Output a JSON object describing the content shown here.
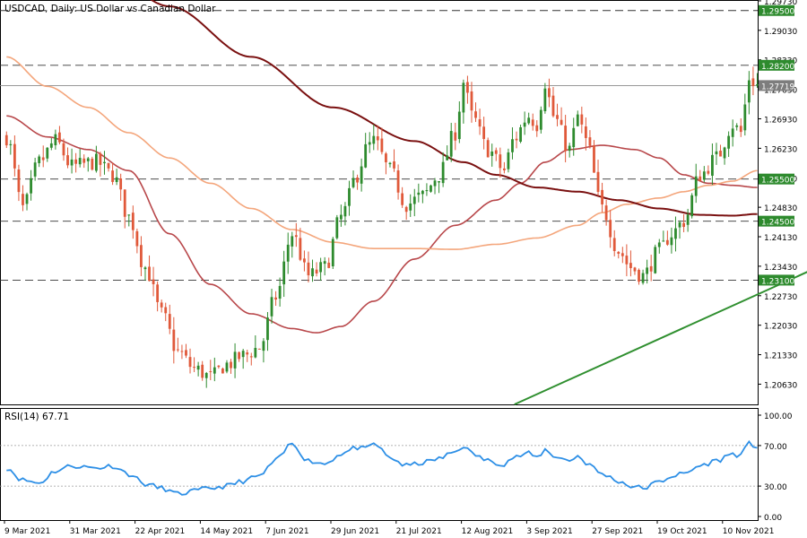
{
  "title": "USDCAD, Daily:  US Dollar vs Canadian Dollar",
  "rsi_label": "RSI(14) 67.71",
  "colors": {
    "bull": "#2e8b2e",
    "bear": "#e0593a",
    "ma_short": "#b8474a",
    "ma_mid": "#f4a67c",
    "ma_long": "#7a1010",
    "trendline": "#2f8f2f",
    "rsi": "#2d8fe6",
    "grid_dash": "#333333",
    "axis": "#000000",
    "label_bg": "#2e8b2e"
  },
  "chart_data": [
    {
      "type": "candlestick",
      "title": "USDCAD, Daily:  US Dollar vs Canadian Dollar",
      "ylim": [
        1.2015,
        1.2975
      ],
      "y_ticks": [
        "1.29730",
        "1.29030",
        "1.28330",
        "1.27630",
        "1.26930",
        "1.26230",
        "1.25530",
        "1.24830",
        "1.24130",
        "1.23430",
        "1.22730",
        "1.22030",
        "1.21330",
        "1.20630"
      ],
      "x_ticks": [
        "9 Mar 2021",
        "31 Mar 2021",
        "22 Apr 2021",
        "14 May 2021",
        "7 Jun 2021",
        "29 Jun 2021",
        "21 Jul 2021",
        "12 Aug 2021",
        "3 Sep 2021",
        "27 Sep 2021",
        "19 Oct 2021",
        "10 Nov 2021"
      ],
      "x_tick_index": [
        0,
        16,
        32,
        48,
        64,
        80,
        96,
        112,
        128,
        144,
        160,
        176
      ],
      "price_levels": [
        {
          "label": "1.29500",
          "value": 1.295
        },
        {
          "label": "1.28200",
          "value": 1.282
        },
        {
          "label": "1.25500",
          "value": 1.255
        },
        {
          "label": "1.24500",
          "value": 1.245
        },
        {
          "label": "1.23100",
          "value": 1.231
        }
      ],
      "current_price": {
        "label": "1.27719",
        "value": 1.27719
      },
      "anchors": [
        [
          0,
          1.265
        ],
        [
          4,
          1.248
        ],
        [
          8,
          1.259
        ],
        [
          12,
          1.264
        ],
        [
          16,
          1.258
        ],
        [
          22,
          1.259
        ],
        [
          26,
          1.256
        ],
        [
          30,
          1.246
        ],
        [
          34,
          1.234
        ],
        [
          38,
          1.223
        ],
        [
          42,
          1.214
        ],
        [
          46,
          1.21
        ],
        [
          50,
          1.208
        ],
        [
          54,
          1.211
        ],
        [
          58,
          1.213
        ],
        [
          62,
          1.215
        ],
        [
          66,
          1.227
        ],
        [
          70,
          1.242
        ],
        [
          74,
          1.232
        ],
        [
          78,
          1.234
        ],
        [
          82,
          1.246
        ],
        [
          86,
          1.256
        ],
        [
          88,
          1.262
        ],
        [
          90,
          1.264
        ],
        [
          94,
          1.257
        ],
        [
          98,
          1.249
        ],
        [
          102,
          1.251
        ],
        [
          106,
          1.256
        ],
        [
          110,
          1.266
        ],
        [
          112,
          1.278
        ],
        [
          114,
          1.27
        ],
        [
          118,
          1.262
        ],
        [
          122,
          1.257
        ],
        [
          124,
          1.264
        ],
        [
          128,
          1.27
        ],
        [
          130,
          1.268
        ],
        [
          132,
          1.278
        ],
        [
          134,
          1.27
        ],
        [
          138,
          1.262
        ],
        [
          140,
          1.27
        ],
        [
          142,
          1.264
        ],
        [
          146,
          1.248
        ],
        [
          150,
          1.238
        ],
        [
          153,
          1.234
        ],
        [
          156,
          1.232
        ],
        [
          160,
          1.238
        ],
        [
          163,
          1.242
        ],
        [
          166,
          1.245
        ],
        [
          170,
          1.256
        ],
        [
          174,
          1.26
        ],
        [
          178,
          1.268
        ],
        [
          180,
          1.266
        ],
        [
          182,
          1.279
        ],
        [
          184,
          1.2772
        ]
      ],
      "candle_count": 185,
      "series": [
        {
          "name": "MA short",
          "anchors": [
            [
              0,
              1.27
            ],
            [
              10,
              1.265
            ],
            [
              20,
              1.262
            ],
            [
              30,
              1.257
            ],
            [
              40,
              1.242
            ],
            [
              50,
              1.23
            ],
            [
              60,
              1.223
            ],
            [
              70,
              1.2195
            ],
            [
              76,
              1.2185
            ],
            [
              82,
              1.22
            ],
            [
              90,
              1.226
            ],
            [
              100,
              1.236
            ],
            [
              110,
              1.244
            ],
            [
              120,
              1.25
            ],
            [
              126,
              1.254
            ],
            [
              132,
              1.259
            ],
            [
              138,
              1.262
            ],
            [
              146,
              1.263
            ],
            [
              154,
              1.262
            ],
            [
              160,
              1.26
            ],
            [
              166,
              1.256
            ],
            [
              172,
              1.254
            ],
            [
              178,
              1.2535
            ],
            [
              184,
              1.253
            ]
          ]
        },
        {
          "name": "MA mid",
          "anchors": [
            [
              0,
              1.284
            ],
            [
              10,
              1.277
            ],
            [
              20,
              1.272
            ],
            [
              30,
              1.266
            ],
            [
              40,
              1.26
            ],
            [
              50,
              1.254
            ],
            [
              60,
              1.248
            ],
            [
              70,
              1.243
            ],
            [
              80,
              1.24
            ],
            [
              90,
              1.2385
            ],
            [
              100,
              1.2385
            ],
            [
              110,
              1.2383
            ],
            [
              120,
              1.2395
            ],
            [
              130,
              1.241
            ],
            [
              140,
              1.244
            ],
            [
              146,
              1.247
            ],
            [
              152,
              1.249
            ],
            [
              160,
              1.2505
            ],
            [
              166,
              1.252
            ],
            [
              172,
              1.2535
            ],
            [
              178,
              1.2545
            ],
            [
              184,
              1.257
            ]
          ]
        },
        {
          "name": "MA long",
          "anchors": [
            [
              0,
              1.32
            ],
            [
              20,
              1.308
            ],
            [
              40,
              1.296
            ],
            [
              60,
              1.284
            ],
            [
              80,
              1.272
            ],
            [
              100,
              1.264
            ],
            [
              112,
              1.259
            ],
            [
              120,
              1.256
            ],
            [
              130,
              1.253
            ],
            [
              140,
              1.252
            ],
            [
              150,
              1.25
            ],
            [
              160,
              1.248
            ],
            [
              170,
              1.2465
            ],
            [
              178,
              1.2463
            ],
            [
              184,
              1.2467
            ]
          ]
        }
      ],
      "trendline": {
        "start": [
          125,
          1.2015
        ],
        "end": [
          222,
          1.244
        ]
      }
    },
    {
      "type": "line",
      "title": "RSI(14) 67.71",
      "ylim": [
        0,
        100
      ],
      "y_ticks": [
        "100.00",
        "70.00",
        "30.00",
        "0.00"
      ],
      "levels": [
        70,
        30
      ],
      "series": [
        {
          "name": "RSI(14)",
          "anchors": [
            [
              0,
              48
            ],
            [
              4,
              36
            ],
            [
              8,
              33
            ],
            [
              12,
              45
            ],
            [
              16,
              50
            ],
            [
              22,
              48
            ],
            [
              26,
              50
            ],
            [
              30,
              42
            ],
            [
              34,
              32
            ],
            [
              38,
              28
            ],
            [
              42,
              22
            ],
            [
              46,
              25
            ],
            [
              50,
              28
            ],
            [
              54,
              30
            ],
            [
              58,
              35
            ],
            [
              62,
              40
            ],
            [
              66,
              55
            ],
            [
              70,
              72
            ],
            [
              74,
              55
            ],
            [
              78,
              52
            ],
            [
              82,
              62
            ],
            [
              86,
              68
            ],
            [
              88,
              66
            ],
            [
              90,
              72
            ],
            [
              94,
              58
            ],
            [
              98,
              50
            ],
            [
              102,
              53
            ],
            [
              106,
              57
            ],
            [
              110,
              64
            ],
            [
              112,
              70
            ],
            [
              114,
              62
            ],
            [
              118,
              55
            ],
            [
              122,
              52
            ],
            [
              124,
              58
            ],
            [
              128,
              62
            ],
            [
              130,
              58
            ],
            [
              132,
              66
            ],
            [
              134,
              60
            ],
            [
              138,
              55
            ],
            [
              140,
              60
            ],
            [
              142,
              53
            ],
            [
              146,
              42
            ],
            [
              150,
              35
            ],
            [
              153,
              30
            ],
            [
              156,
              28
            ],
            [
              160,
              34
            ],
            [
              163,
              40
            ],
            [
              166,
              42
            ],
            [
              170,
              50
            ],
            [
              174,
              55
            ],
            [
              178,
              62
            ],
            [
              180,
              60
            ],
            [
              182,
              72
            ],
            [
              184,
              67.71
            ]
          ]
        }
      ]
    }
  ]
}
